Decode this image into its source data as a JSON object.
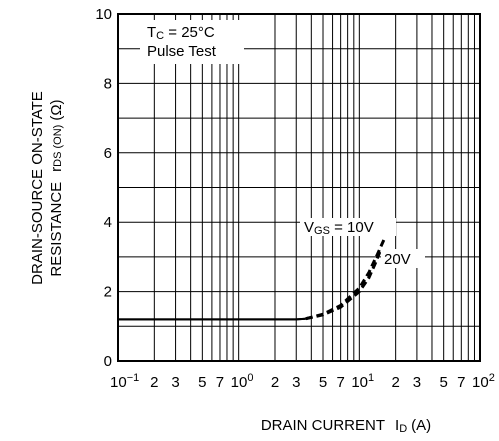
{
  "chart_data": {
    "type": "line",
    "xscale": "log",
    "xlim": [
      0.1,
      100
    ],
    "ylim": [
      0,
      10
    ],
    "grid": true,
    "xlabel": {
      "main": "DRAIN CURRENT",
      "symbol": "I",
      "symbol_sub": "D",
      "unit": "(A)"
    },
    "ylabel": {
      "line1": "DRAIN-SOURCE ON-STATE",
      "line2_main": "RESISTANCE",
      "line2_symbol": "r",
      "line2_sub": "DS (ON)",
      "line2_unit": "(Ω)"
    },
    "yticks": [
      "0",
      "2",
      "4",
      "6",
      "8",
      "10"
    ],
    "xticks": [
      {
        "x": 0.1,
        "base": "10",
        "exp": "−1"
      },
      {
        "x": 0.2,
        "label": "2"
      },
      {
        "x": 0.3,
        "label": "3"
      },
      {
        "x": 0.5,
        "label": "5"
      },
      {
        "x": 0.7,
        "label": "7"
      },
      {
        "x": 1,
        "base": "10",
        "exp": "0"
      },
      {
        "x": 2,
        "label": "2"
      },
      {
        "x": 3,
        "label": "3"
      },
      {
        "x": 5,
        "label": "5"
      },
      {
        "x": 7,
        "label": "7"
      },
      {
        "x": 10,
        "base": "10",
        "exp": "1"
      },
      {
        "x": 20,
        "label": "2"
      },
      {
        "x": 30,
        "label": "3"
      },
      {
        "x": 50,
        "label": "5"
      },
      {
        "x": 70,
        "label": "7"
      },
      {
        "x": 100,
        "base": "10",
        "exp": "2"
      }
    ],
    "conditions": {
      "line1_main": "T",
      "line1_sub": "C",
      "line1_rest": " = 25°C",
      "line2": "Pulse Test"
    },
    "series": [
      {
        "name": "VGS = 10V",
        "label_main": "V",
        "label_sub": "GS",
        "label_rest": " = 10V",
        "solid": [
          [
            0.1,
            1.2
          ],
          [
            3.0,
            1.2
          ],
          [
            3.6,
            1.22
          ]
        ],
        "dashed": [
          [
            3.6,
            1.22
          ],
          [
            5,
            1.35
          ],
          [
            7,
            1.6
          ],
          [
            10,
            2.1
          ],
          [
            12,
            2.55
          ],
          [
            14,
            3.05
          ],
          [
            16,
            3.5
          ]
        ]
      },
      {
        "name": "20V",
        "label_main": "20V",
        "solid": [
          [
            0.1,
            1.2
          ],
          [
            3.0,
            1.2
          ],
          [
            3.6,
            1.22
          ]
        ],
        "dashed": [
          [
            3.6,
            1.22
          ],
          [
            5,
            1.33
          ],
          [
            7,
            1.55
          ],
          [
            10,
            2.0
          ],
          [
            12,
            2.4
          ],
          [
            13.5,
            2.8
          ],
          [
            15,
            3.2
          ]
        ]
      }
    ]
  }
}
